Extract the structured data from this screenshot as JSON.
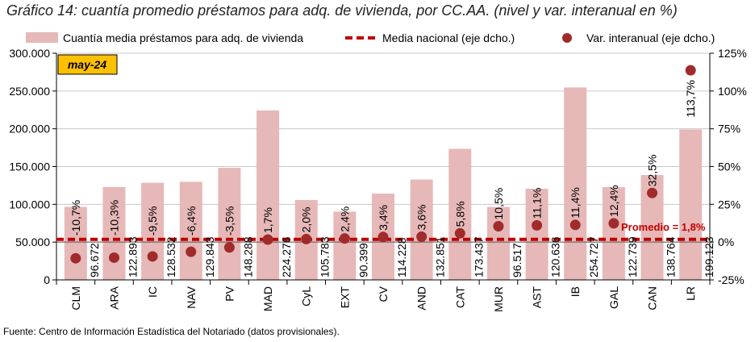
{
  "chart_data": {
    "type": "bar",
    "title": "Gráfico 14: cuantía promedio préstamos para adq. de vivienda, por CC.AA. (nivel y var. interanual en %)",
    "period_label": "may-24",
    "source": "Fuente: Centro de Información Estadística del Notariado (datos provisionales).",
    "categories": [
      "CLM",
      "ARA",
      "IC",
      "NAV",
      "PV",
      "MAD",
      "CyL",
      "EXT",
      "CV",
      "AND",
      "CAT",
      "MUR",
      "AST",
      "IB",
      "GAL",
      "CAN",
      "LR"
    ],
    "series": [
      {
        "name": "Cuantía media préstamos para adq. de vivienda",
        "type": "bar",
        "axis": "left",
        "color": "#e6b8b7",
        "values": [
          96672,
          122893,
          128532,
          129843,
          148288,
          224276,
          105783,
          90399,
          114228,
          132851,
          173437,
          96517,
          120636,
          254727,
          122739,
          138764,
          199123
        ],
        "labels": [
          "96.672",
          "122.893",
          "128.532",
          "129.843",
          "148.288",
          "224.276",
          "105.783",
          "90.399",
          "114.228",
          "132.851",
          "173.437",
          "96.517",
          "120.636",
          "254.727",
          "122.739",
          "138.764",
          "199.123"
        ]
      },
      {
        "name": "Media nacional (eje dcho.)",
        "type": "line",
        "axis": "right",
        "color": "#c00000",
        "value": 1.8,
        "label": "Promedio = 1,8%"
      },
      {
        "name": "Var. interanual (eje dcho.)",
        "type": "scatter",
        "axis": "right",
        "color": "#a02b2b",
        "values": [
          -10.7,
          -10.3,
          -9.5,
          -6.4,
          -3.5,
          1.7,
          2.0,
          2.4,
          3.4,
          3.6,
          5.8,
          10.5,
          11.1,
          11.4,
          12.4,
          32.5,
          113.7
        ],
        "labels": [
          "-10,7%",
          "-10,3%",
          "-9,5%",
          "-6,4%",
          "-3,5%",
          "1,7%",
          "2,0%",
          "2,4%",
          "3,4%",
          "3,6%",
          "5,8%",
          "10,5%",
          "11,1%",
          "11,4%",
          "12,4%",
          "32,5%",
          "113,7%"
        ]
      }
    ],
    "ylim": [
      0,
      300000
    ],
    "yticks": [
      "0",
      "50.000",
      "100.000",
      "150.000",
      "200.000",
      "250.000",
      "300.000"
    ],
    "y2lim": [
      -25,
      125
    ],
    "y2ticks": [
      "-25%",
      "0%",
      "25%",
      "50%",
      "75%",
      "100%",
      "125%"
    ],
    "grid": true,
    "legend": "top"
  }
}
